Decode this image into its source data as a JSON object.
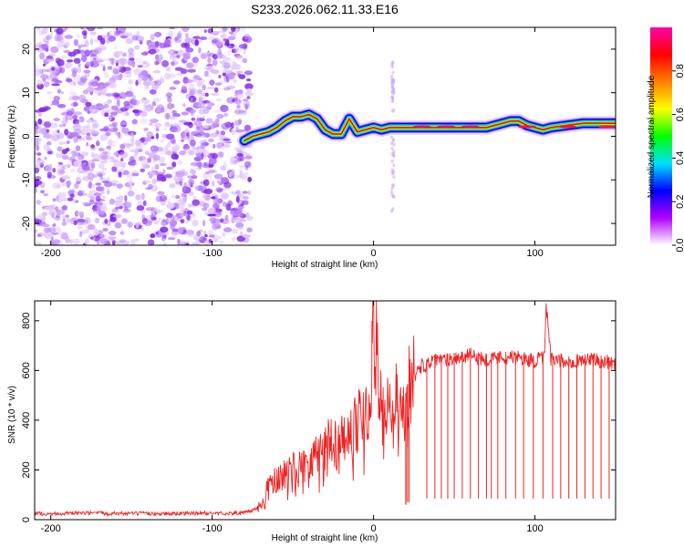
{
  "title": "S233.2026.062.11.33.E16",
  "chart_data": [
    {
      "type": "heatmap",
      "name": "spectrogram",
      "xlabel": "Height of straight line (km)",
      "ylabel": "Frequency (Hz)",
      "xlim": [
        -210,
        150
      ],
      "ylim": [
        -25,
        25
      ],
      "xticks": [
        -200,
        -100,
        0,
        100
      ],
      "yticks": [
        -20,
        -10,
        0,
        10,
        20
      ],
      "noise_region_x": [
        -210,
        -80
      ],
      "ridge": {
        "x": [
          -80,
          -75,
          -70,
          -65,
          -60,
          -55,
          -50,
          -45,
          -40,
          -35,
          -30,
          -25,
          -20,
          -15,
          -10,
          -5,
          0,
          5,
          10,
          20,
          30,
          40,
          50,
          60,
          70,
          80,
          85,
          90,
          95,
          100,
          105,
          110,
          120,
          130,
          140,
          150
        ],
        "frequency": [
          -1,
          0,
          0.5,
          1,
          2,
          3.5,
          4.5,
          4.5,
          5,
          4,
          1.5,
          0.5,
          0.5,
          4,
          1,
          1.5,
          2,
          1.5,
          2,
          2,
          2,
          2,
          2,
          2,
          2,
          3,
          3.5,
          3.5,
          2.5,
          2,
          1.5,
          2,
          2.5,
          3,
          3,
          3
        ]
      },
      "colorbar": {
        "label": "Normalized spectral amplitude",
        "range": [
          0,
          1
        ],
        "ticks": [
          "0.0",
          "0.2",
          "0.4",
          "0.6",
          "0.8"
        ],
        "colors": [
          "#ffffff",
          "#b000ff",
          "#0000ff",
          "#00e0ff",
          "#00ff00",
          "#ffff00",
          "#ff8000",
          "#ff0000",
          "#ff00aa"
        ]
      }
    },
    {
      "type": "line",
      "name": "snr",
      "xlabel": "Height of straight line (km)",
      "ylabel": "SNR (10 * v/v)",
      "xlim": [
        -210,
        150
      ],
      "ylim": [
        0,
        880
      ],
      "xticks": [
        -200,
        -100,
        0,
        100
      ],
      "yticks": [
        0,
        200,
        400,
        600,
        800
      ],
      "color": "#ee2222",
      "series": [
        {
          "name": "SNR",
          "x": [
            -210,
            -200,
            -180,
            -160,
            -140,
            -120,
            -100,
            -90,
            -80,
            -72,
            -68,
            -65,
            -62,
            -60,
            -55,
            -50,
            -45,
            -40,
            -35,
            -30,
            -25,
            -20,
            -15,
            -10,
            -5,
            -2,
            0,
            5,
            10,
            15,
            18,
            20,
            22,
            25,
            28,
            30,
            35,
            40,
            50,
            60,
            70,
            80,
            90,
            100,
            106,
            107,
            110,
            120,
            130,
            140,
            150
          ],
          "y": [
            25,
            24,
            26,
            25,
            24,
            25,
            26,
            25,
            27,
            45,
            80,
            140,
            160,
            150,
            190,
            210,
            230,
            240,
            270,
            300,
            320,
            350,
            380,
            390,
            410,
            440,
            800,
            420,
            450,
            470,
            480,
            490,
            560,
            580,
            600,
            620,
            630,
            640,
            650,
            660,
            645,
            655,
            650,
            640,
            650,
            870,
            640,
            635,
            645,
            640,
            630
          ]
        }
      ],
      "dropouts_x": [
        20,
        21,
        22,
        33,
        38,
        42,
        46,
        50,
        55,
        60,
        65,
        70,
        73,
        77,
        82,
        88,
        93,
        99,
        105,
        111,
        116,
        121,
        126,
        131,
        136,
        141,
        146
      ]
    }
  ]
}
